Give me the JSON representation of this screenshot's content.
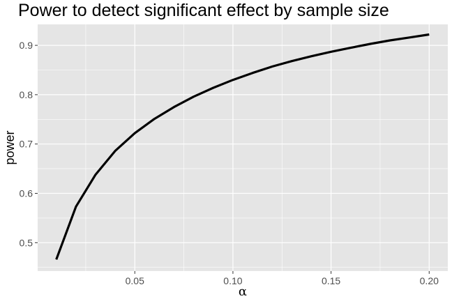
{
  "chart_data": {
    "type": "line",
    "title": "Power to detect significant effect by sample size",
    "xlabel": "α",
    "ylabel": "power",
    "xlim": [
      0.0005,
      0.2095
    ],
    "ylim": [
      0.4425,
      0.9425
    ],
    "x_ticks": [
      0.05,
      0.1,
      0.15,
      0.2
    ],
    "x_tick_labels": [
      "0.05",
      "0.10",
      "0.15",
      "0.20"
    ],
    "y_ticks": [
      0.5,
      0.6,
      0.7,
      0.8,
      0.9
    ],
    "y_tick_labels": [
      "0.5",
      "0.6",
      "0.7",
      "0.8",
      "0.9"
    ],
    "grid": true,
    "colors": {
      "panel": "#e5e5e5",
      "grid": "#ffffff",
      "line": "#000000"
    },
    "series": [
      {
        "x": [
          0.01,
          0.02,
          0.03,
          0.04,
          0.05,
          0.06,
          0.07,
          0.08,
          0.09,
          0.1,
          0.11,
          0.12,
          0.13,
          0.14,
          0.15,
          0.16,
          0.17,
          0.18,
          0.19,
          0.2
        ],
        "y": [
          0.466,
          0.573,
          0.638,
          0.686,
          0.722,
          0.751,
          0.775,
          0.796,
          0.814,
          0.83,
          0.844,
          0.857,
          0.868,
          0.878,
          0.887,
          0.895,
          0.903,
          0.91,
          0.916,
          0.922
        ]
      }
    ]
  }
}
